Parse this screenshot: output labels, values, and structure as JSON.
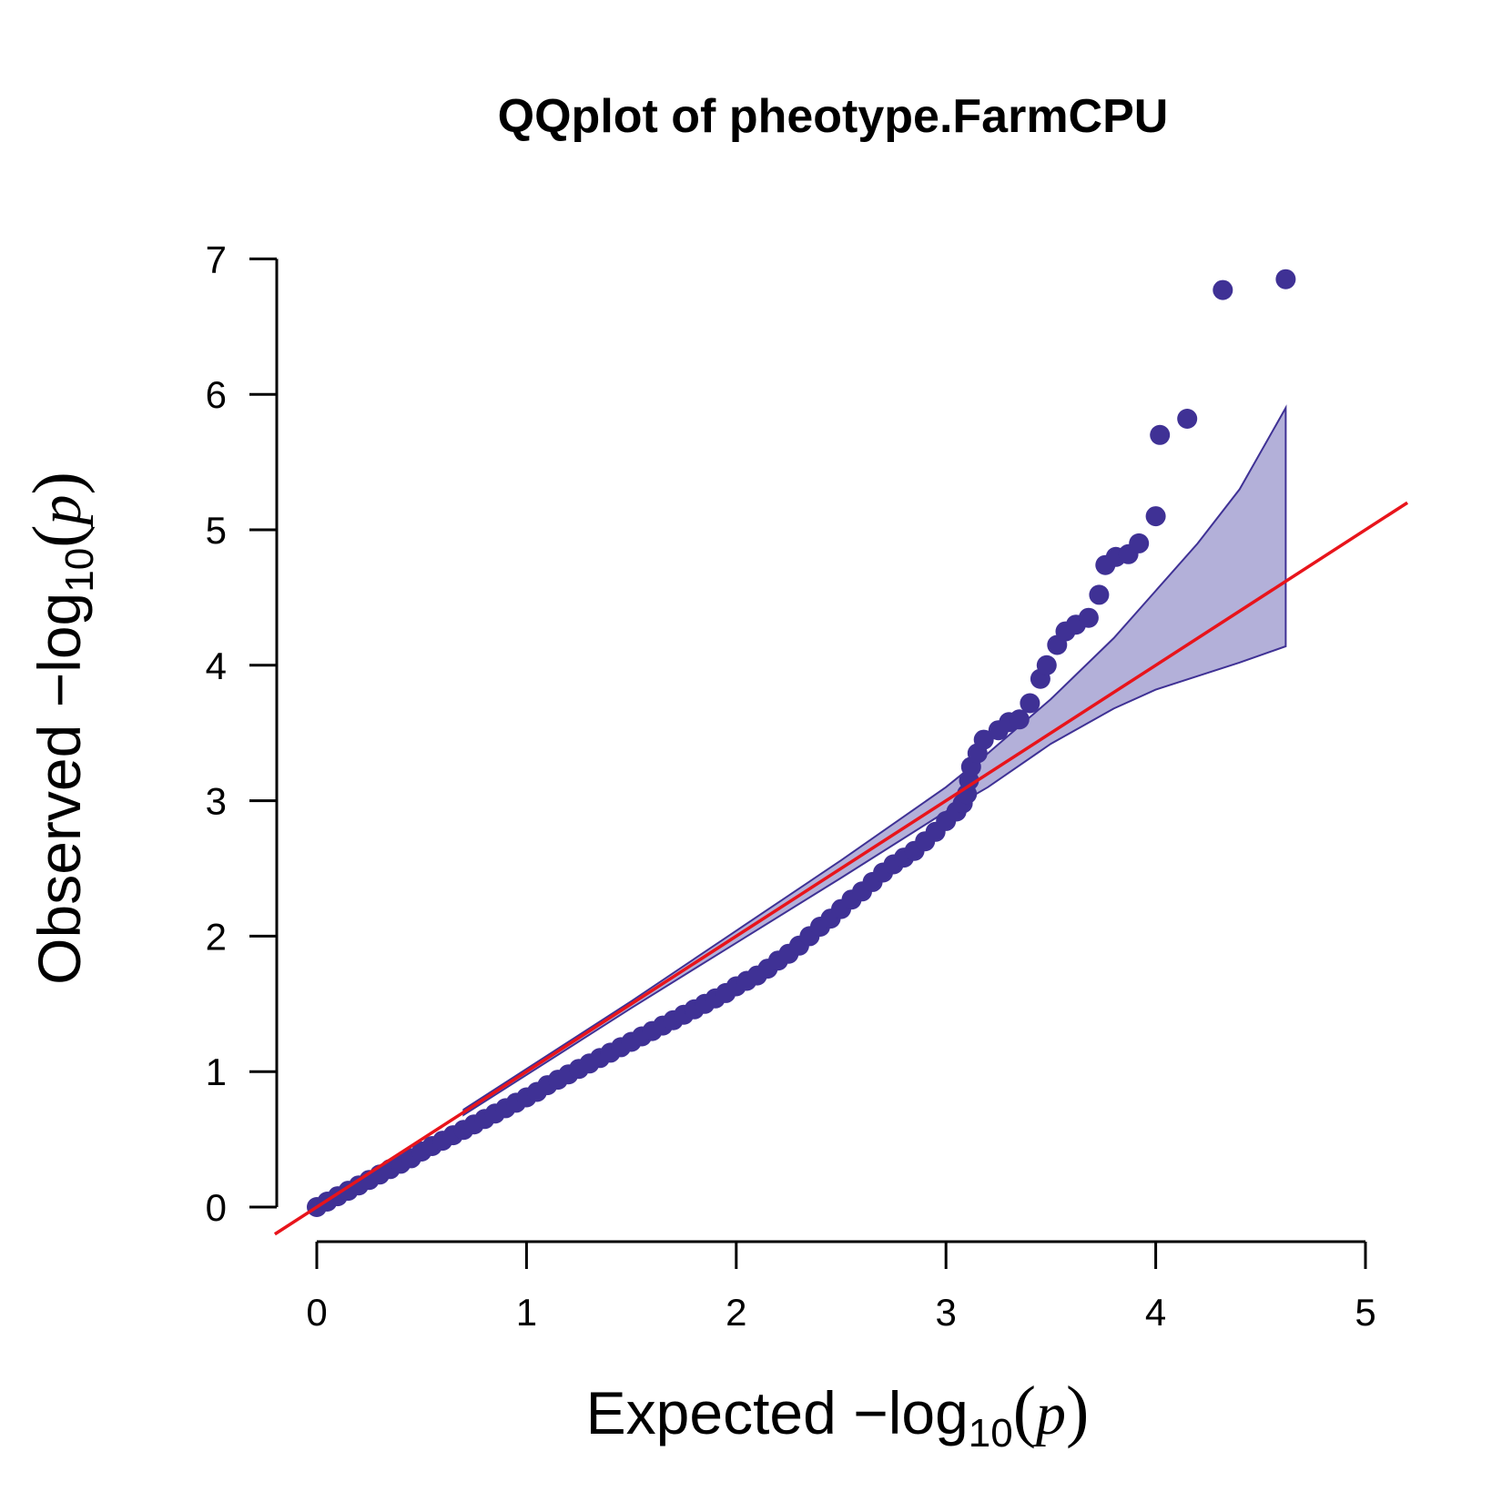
{
  "chart_data": {
    "type": "scatter",
    "title": "QQplot of pheotype.FarmCPU",
    "xlabel": {
      "prefix": "Expected  −log",
      "subscript": "10",
      "paren_open": "(",
      "var": "p",
      "paren_close": ")"
    },
    "ylabel": {
      "prefix": "Observed  −log",
      "subscript": "10",
      "paren_open": "(",
      "var": "p",
      "paren_close": ")"
    },
    "xlim": [
      0,
      5
    ],
    "ylim": [
      0,
      7
    ],
    "x_ticks": [
      "0",
      "1",
      "2",
      "3",
      "4",
      "5"
    ],
    "y_ticks": [
      "0",
      "1",
      "2",
      "3",
      "4",
      "5",
      "6",
      "7"
    ],
    "colors": {
      "points": "#3f3195",
      "reference_line": "#e8141b",
      "confidence_band_fill": "#b3b0d9",
      "confidence_band_stroke": "#3f3195"
    },
    "reference_line": {
      "x": [
        -0.2,
        5.2
      ],
      "y": [
        -0.2,
        5.2
      ]
    },
    "confidence_band": {
      "x": [
        0.7,
        1.5,
        2.0,
        2.5,
        3.0,
        3.2,
        3.5,
        3.8,
        4.0,
        4.2,
        4.4,
        4.62
      ],
      "upper": [
        0.72,
        1.52,
        2.04,
        2.56,
        3.1,
        3.35,
        3.75,
        4.2,
        4.55,
        4.9,
        5.3,
        5.9
      ],
      "lower": [
        0.68,
        1.47,
        1.95,
        2.43,
        2.92,
        3.1,
        3.42,
        3.68,
        3.82,
        3.92,
        4.02,
        4.14
      ]
    },
    "series": [
      {
        "values": [
          [
            0.0,
            0.0
          ],
          [
            0.05,
            0.04
          ],
          [
            0.1,
            0.08
          ],
          [
            0.15,
            0.12
          ],
          [
            0.2,
            0.16
          ],
          [
            0.25,
            0.2
          ],
          [
            0.3,
            0.24
          ],
          [
            0.35,
            0.28
          ],
          [
            0.4,
            0.32
          ],
          [
            0.45,
            0.36
          ],
          [
            0.5,
            0.41
          ],
          [
            0.55,
            0.45
          ],
          [
            0.6,
            0.49
          ],
          [
            0.65,
            0.53
          ],
          [
            0.7,
            0.57
          ],
          [
            0.75,
            0.61
          ],
          [
            0.8,
            0.65
          ],
          [
            0.85,
            0.69
          ],
          [
            0.9,
            0.73
          ],
          [
            0.95,
            0.77
          ],
          [
            1.0,
            0.81
          ],
          [
            1.05,
            0.85
          ],
          [
            1.1,
            0.9
          ],
          [
            1.15,
            0.94
          ],
          [
            1.2,
            0.98
          ],
          [
            1.25,
            1.02
          ],
          [
            1.3,
            1.06
          ],
          [
            1.35,
            1.1
          ],
          [
            1.4,
            1.14
          ],
          [
            1.45,
            1.18
          ],
          [
            1.5,
            1.22
          ],
          [
            1.55,
            1.26
          ],
          [
            1.6,
            1.3
          ],
          [
            1.65,
            1.34
          ],
          [
            1.7,
            1.38
          ],
          [
            1.75,
            1.42
          ],
          [
            1.8,
            1.46
          ],
          [
            1.85,
            1.5
          ],
          [
            1.9,
            1.54
          ],
          [
            1.95,
            1.58
          ],
          [
            2.0,
            1.63
          ],
          [
            2.05,
            1.67
          ],
          [
            2.1,
            1.71
          ],
          [
            2.15,
            1.76
          ],
          [
            2.2,
            1.82
          ],
          [
            2.25,
            1.87
          ],
          [
            2.3,
            1.93
          ],
          [
            2.35,
            2.0
          ],
          [
            2.4,
            2.07
          ],
          [
            2.45,
            2.13
          ],
          [
            2.5,
            2.2
          ],
          [
            2.55,
            2.27
          ],
          [
            2.6,
            2.33
          ],
          [
            2.65,
            2.4
          ],
          [
            2.7,
            2.47
          ],
          [
            2.75,
            2.53
          ],
          [
            2.8,
            2.58
          ],
          [
            2.85,
            2.63
          ],
          [
            2.9,
            2.7
          ],
          [
            2.95,
            2.77
          ],
          [
            3.0,
            2.85
          ],
          [
            3.05,
            2.92
          ],
          [
            3.08,
            2.98
          ],
          [
            3.1,
            3.05
          ],
          [
            3.11,
            3.15
          ],
          [
            3.12,
            3.25
          ],
          [
            3.15,
            3.35
          ],
          [
            3.18,
            3.45
          ],
          [
            3.25,
            3.52
          ],
          [
            3.3,
            3.58
          ],
          [
            3.35,
            3.6
          ],
          [
            3.4,
            3.72
          ],
          [
            3.45,
            3.9
          ],
          [
            3.48,
            4.0
          ],
          [
            3.53,
            4.15
          ],
          [
            3.57,
            4.25
          ],
          [
            3.62,
            4.3
          ],
          [
            3.68,
            4.35
          ],
          [
            3.73,
            4.52
          ],
          [
            3.76,
            4.74
          ],
          [
            3.81,
            4.8
          ],
          [
            3.87,
            4.82
          ],
          [
            3.92,
            4.9
          ],
          [
            4.0,
            5.1
          ],
          [
            4.02,
            5.7
          ],
          [
            4.15,
            5.82
          ],
          [
            4.32,
            6.77
          ],
          [
            4.62,
            6.85
          ]
        ]
      }
    ]
  }
}
